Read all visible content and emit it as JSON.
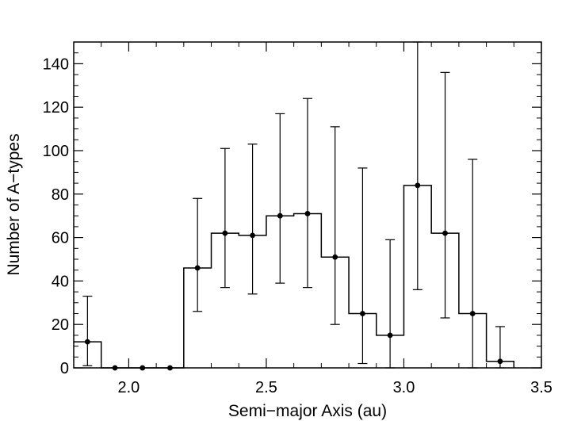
{
  "chart_data": {
    "type": "histogram",
    "xlabel": "Semi−major Axis (au)",
    "ylabel": "Number of A−types",
    "xlim": [
      1.8,
      3.5
    ],
    "ylim": [
      0,
      150
    ],
    "xticks": [
      "2.0",
      "2.5",
      "3.0",
      "3.5"
    ],
    "xtick_values": [
      2.0,
      2.5,
      3.0,
      3.5
    ],
    "yticks": [
      "0",
      "20",
      "40",
      "60",
      "80",
      "100",
      "120",
      "140"
    ],
    "ytick_values": [
      0,
      20,
      40,
      60,
      80,
      100,
      120,
      140
    ],
    "bin_width": 0.1,
    "bin_centers": [
      1.85,
      1.95,
      2.05,
      2.15,
      2.25,
      2.35,
      2.45,
      2.55,
      2.65,
      2.75,
      2.85,
      2.95,
      3.05,
      3.15,
      3.25,
      3.35
    ],
    "values": [
      12,
      0,
      0,
      0,
      46,
      62,
      61,
      70,
      71,
      51,
      25,
      15,
      84,
      62,
      25,
      3
    ],
    "error_low": [
      1,
      0,
      0,
      0,
      26,
      37,
      34,
      39,
      37,
      20,
      2,
      -1,
      36,
      23,
      0,
      0
    ],
    "error_high": [
      33,
      0,
      0,
      0,
      78,
      101,
      103,
      117,
      124,
      111,
      92,
      59,
      150,
      136,
      96,
      19
    ],
    "grid": false,
    "frame": true
  }
}
